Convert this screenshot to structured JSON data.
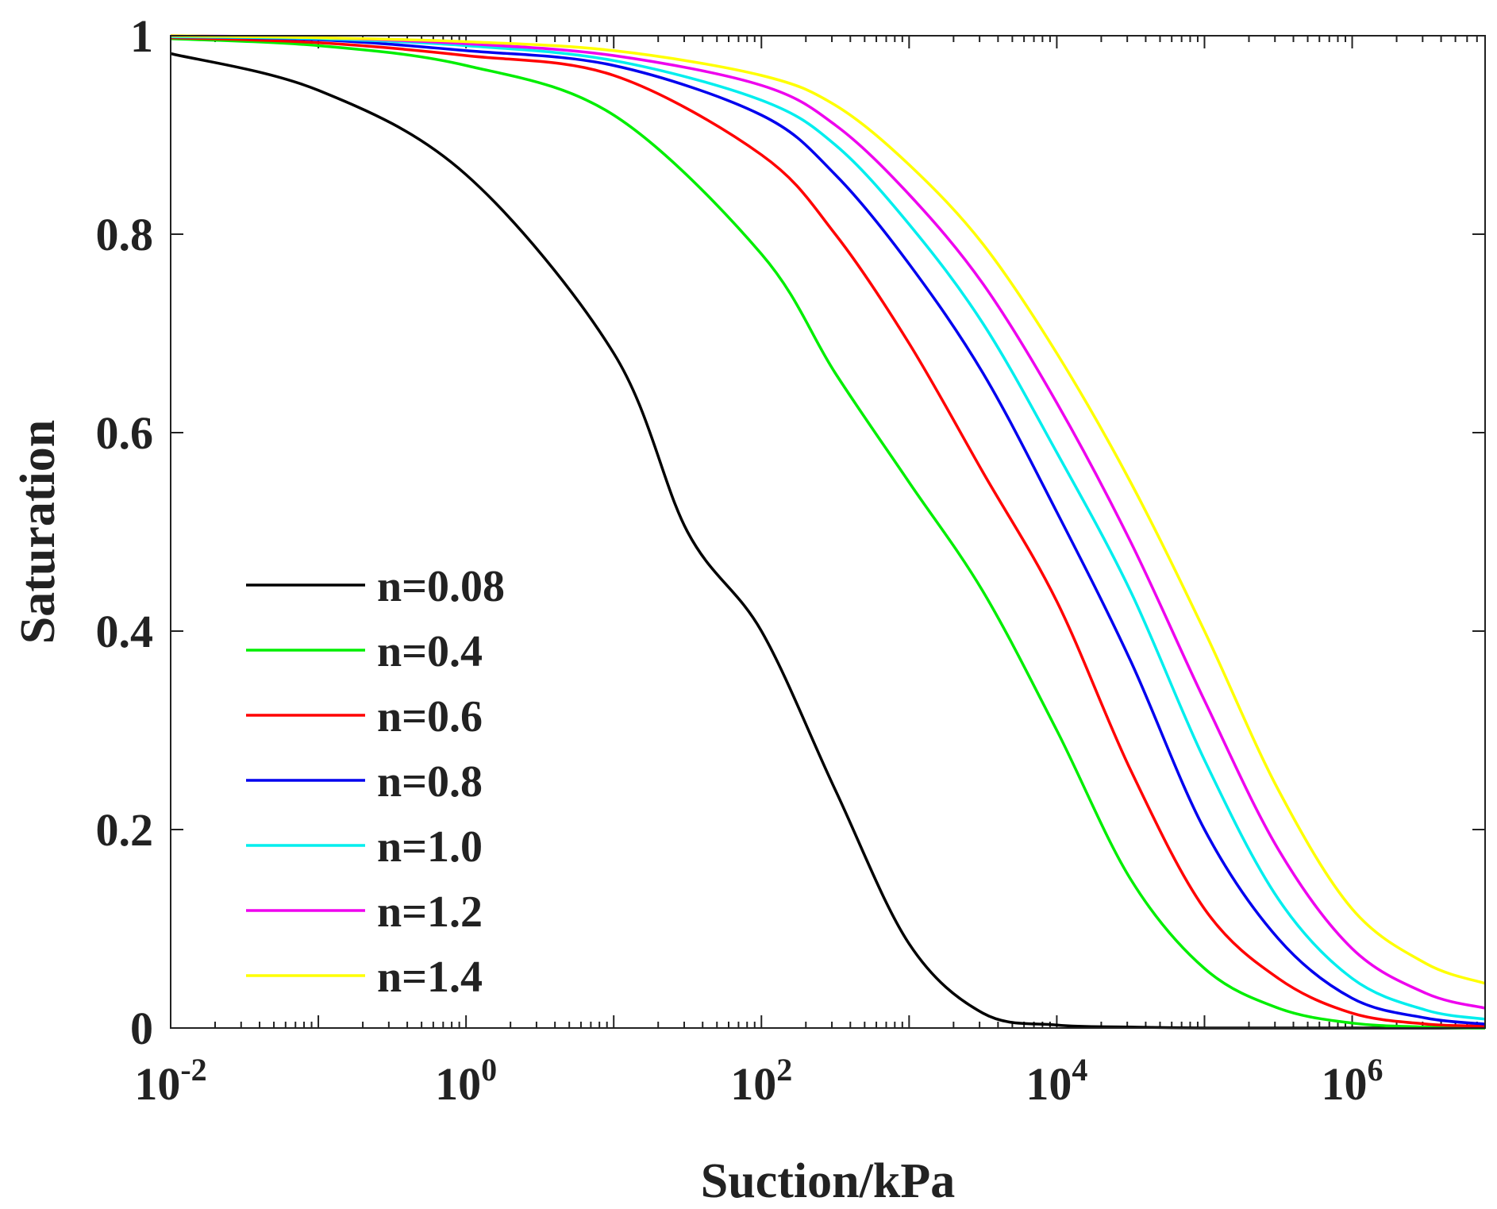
{
  "chart_data": {
    "type": "line",
    "xscale": "log",
    "xlabel": "Suction/kPa",
    "ylabel": "Saturation",
    "xlim_exp": [
      -2,
      6.9
    ],
    "ylim": [
      0,
      1
    ],
    "x_ticks": [
      {
        "base": "10",
        "exp": "-2",
        "value": -2
      },
      {
        "base": "10",
        "exp": "0",
        "value": 0
      },
      {
        "base": "10",
        "exp": "2",
        "value": 2
      },
      {
        "base": "10",
        "exp": "4",
        "value": 4
      },
      {
        "base": "10",
        "exp": "6",
        "value": 6
      }
    ],
    "y_ticks": [
      {
        "label": "0",
        "value": 0
      },
      {
        "label": "0.2",
        "value": 0.2
      },
      {
        "label": "0.4",
        "value": 0.4
      },
      {
        "label": "0.6",
        "value": 0.6
      },
      {
        "label": "0.8",
        "value": 0.8
      },
      {
        "label": "1",
        "value": 1
      }
    ],
    "legend_position": "left-bottom",
    "series": [
      {
        "name": "n=0.08",
        "color": "#000000",
        "x_exp": [
          -2,
          -1,
          0,
          1,
          1.5,
          2,
          2.5,
          3,
          3.5,
          4,
          4.5,
          5,
          6,
          6.9
        ],
        "y": [
          0.982,
          0.945,
          0.86,
          0.68,
          0.5,
          0.4,
          0.24,
          0.085,
          0.015,
          0.003,
          0.001,
          0.0,
          0.0,
          0.0
        ]
      },
      {
        "name": "n=0.4",
        "color": "#00ee00",
        "x_exp": [
          -2,
          -1,
          0,
          1,
          2,
          2.5,
          3,
          3.5,
          4,
          4.5,
          5,
          5.5,
          6,
          6.5,
          6.9
        ],
        "y": [
          0.997,
          0.99,
          0.97,
          0.92,
          0.78,
          0.66,
          0.55,
          0.44,
          0.3,
          0.15,
          0.06,
          0.02,
          0.005,
          0.001,
          0.0
        ]
      },
      {
        "name": "n=0.6",
        "color": "#ff0000",
        "x_exp": [
          -2,
          -1,
          0,
          1,
          2,
          2.5,
          3,
          3.5,
          4,
          4.5,
          5,
          5.5,
          6,
          6.5,
          6.9
        ],
        "y": [
          0.998,
          0.993,
          0.98,
          0.96,
          0.88,
          0.8,
          0.69,
          0.56,
          0.43,
          0.26,
          0.12,
          0.05,
          0.015,
          0.004,
          0.002
        ]
      },
      {
        "name": "n=0.8",
        "color": "#0000ee",
        "x_exp": [
          -2,
          -1,
          0,
          1,
          2,
          2.5,
          3,
          3.5,
          4,
          4.5,
          5,
          5.5,
          6,
          6.5,
          6.9
        ],
        "y": [
          0.999,
          0.996,
          0.985,
          0.97,
          0.92,
          0.86,
          0.77,
          0.66,
          0.52,
          0.37,
          0.2,
          0.09,
          0.03,
          0.01,
          0.004
        ]
      },
      {
        "name": "n=1.0",
        "color": "#00eeee",
        "x_exp": [
          -2,
          -1,
          0,
          1,
          2,
          2.5,
          3,
          3.5,
          4,
          4.5,
          5,
          5.5,
          6,
          6.5,
          6.9
        ],
        "y": [
          0.999,
          0.997,
          0.99,
          0.975,
          0.935,
          0.89,
          0.81,
          0.71,
          0.58,
          0.44,
          0.27,
          0.13,
          0.05,
          0.018,
          0.009
        ]
      },
      {
        "name": "n=1.2",
        "color": "#ee00ee",
        "x_exp": [
          -2,
          -1,
          0,
          1,
          2,
          2.5,
          3,
          3.5,
          4,
          4.5,
          5,
          5.5,
          6,
          6.5,
          6.9
        ],
        "y": [
          1.0,
          0.998,
          0.992,
          0.98,
          0.95,
          0.91,
          0.84,
          0.75,
          0.63,
          0.49,
          0.33,
          0.18,
          0.08,
          0.035,
          0.02
        ]
      },
      {
        "name": "n=1.4",
        "color": "#ffff00",
        "x_exp": [
          -2,
          -1,
          0,
          1,
          2,
          2.5,
          3,
          3.5,
          4,
          4.5,
          5,
          5.5,
          6,
          6.5,
          6.9
        ],
        "y": [
          1.0,
          0.998,
          0.994,
          0.985,
          0.96,
          0.93,
          0.87,
          0.79,
          0.68,
          0.55,
          0.4,
          0.24,
          0.12,
          0.065,
          0.045
        ]
      }
    ]
  }
}
